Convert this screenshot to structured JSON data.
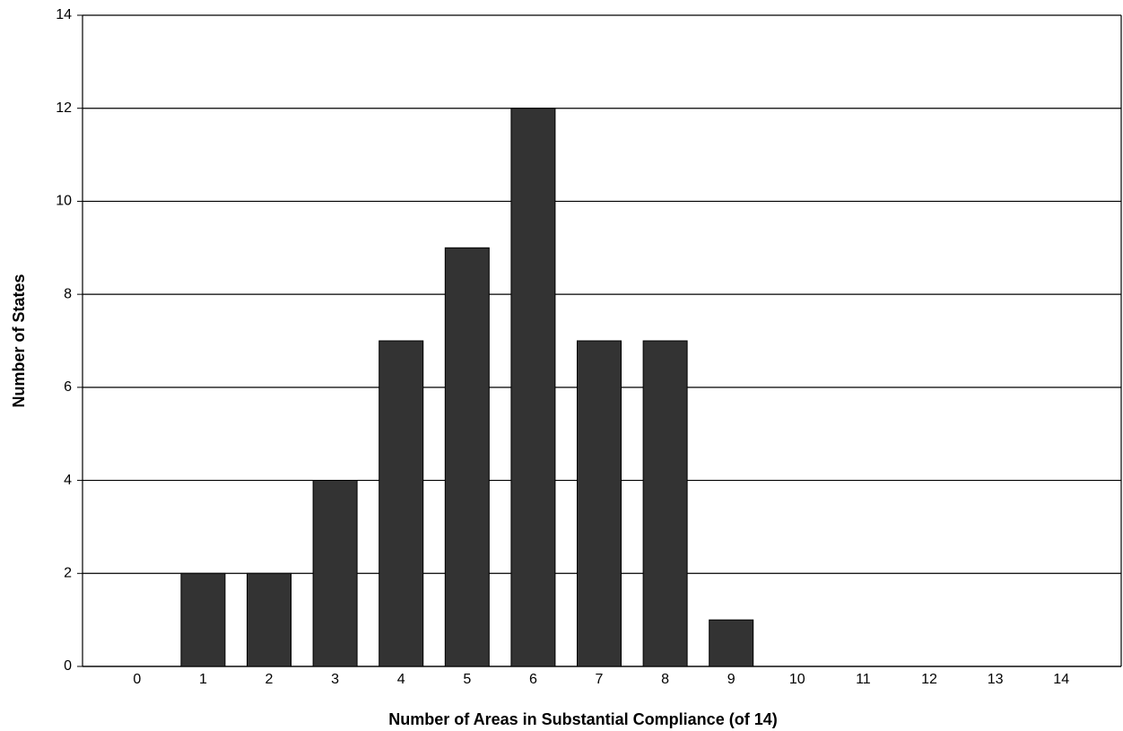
{
  "chart_data": {
    "type": "bar",
    "x_label": "Number of Areas in Substantial Compliance (of 14)",
    "y_label": "Number of States",
    "categories": [
      "0",
      "1",
      "2",
      "3",
      "4",
      "5",
      "6",
      "7",
      "8",
      "9",
      "10",
      "11",
      "12",
      "13",
      "14"
    ],
    "values": [
      0,
      2,
      2,
      4,
      7,
      9,
      12,
      7,
      7,
      1,
      0,
      0,
      0,
      0,
      0
    ],
    "color": "#333333",
    "ylim": [
      0,
      14
    ],
    "yticks": [
      0,
      2,
      4,
      6,
      8,
      10,
      12,
      14
    ],
    "grid": true
  }
}
